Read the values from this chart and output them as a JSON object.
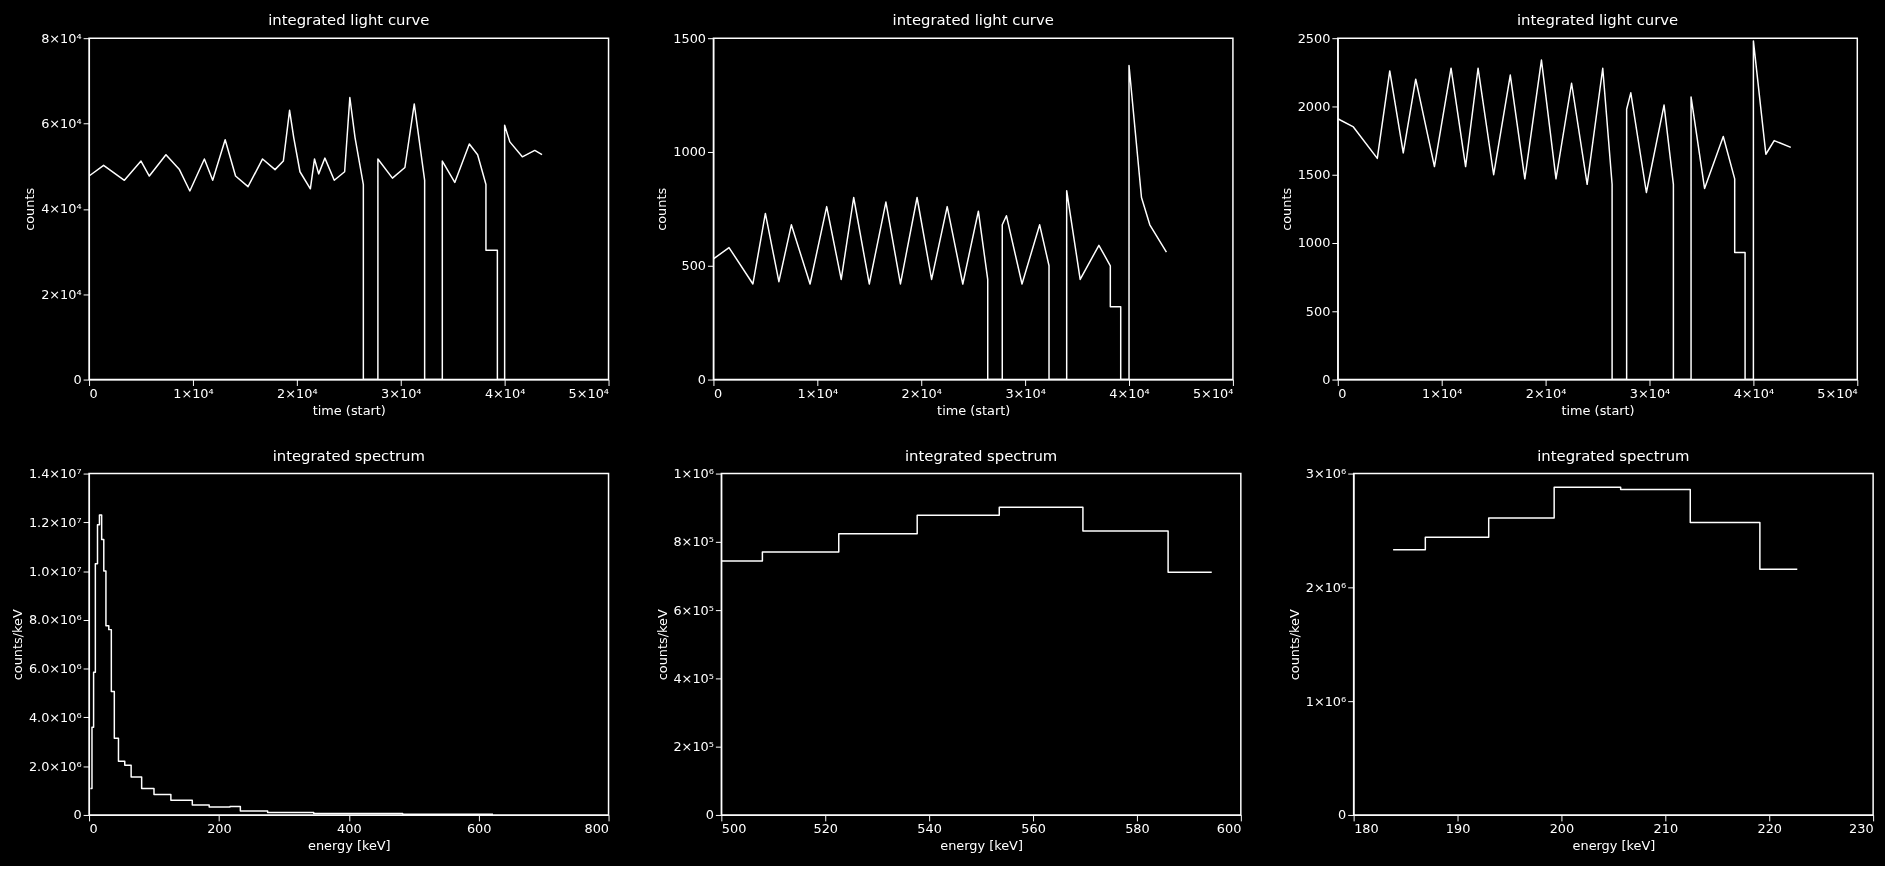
{
  "chart_data": [
    {
      "type": "line",
      "title": "integrated light curve",
      "xlabel": "time (start)",
      "ylabel": "counts",
      "x": [
        0,
        1400,
        3400,
        5000,
        5800,
        7400,
        8700,
        9700,
        11100,
        11900,
        13100,
        14100,
        15300,
        16700,
        17900,
        18700,
        19300,
        19700,
        20300,
        21300,
        21700,
        22100,
        22700,
        23600,
        24600,
        25100,
        25600,
        26400,
        26400,
        27800,
        27800,
        29200,
        30400,
        31300,
        32300,
        32300,
        34000,
        34000,
        35200,
        36600,
        37400,
        38200,
        38200,
        39300,
        39300,
        40000,
        40000,
        40500,
        41700,
        42900,
        43600
      ],
      "series": [
        {
          "color": "#ffffff",
          "values": [
            47700,
            50200,
            46700,
            51200,
            47700,
            52700,
            49200,
            44200,
            51700,
            46700,
            56200,
            47700,
            45200,
            51700,
            49200,
            51200,
            63100,
            56700,
            48700,
            44700,
            51700,
            48200,
            51900,
            46700,
            48700,
            66100,
            56700,
            45700,
            0,
            0,
            51700,
            47200,
            49700,
            64600,
            46700,
            0,
            0,
            51200,
            46200,
            55200,
            52700,
            45700,
            30300,
            30300,
            0,
            0,
            59600,
            55700,
            52200,
            53700,
            52700
          ]
        }
      ],
      "xlim": [
        0,
        50000
      ],
      "xticks": [
        0,
        {
          "value": 10000,
          "label": "1×10⁴"
        },
        {
          "value": 20000,
          "label": "2×10⁴"
        },
        {
          "value": 30000,
          "label": "3×10⁴"
        },
        {
          "value": 40000,
          "label": "4×10⁴"
        },
        {
          "value": 50000,
          "label": "5×10⁴"
        }
      ],
      "ylim": [
        0,
        80000
      ],
      "yticks": [
        0,
        {
          "value": 20000,
          "label": "2×10⁴"
        },
        {
          "value": 40000,
          "label": "4×10⁴"
        },
        {
          "value": 60000,
          "label": "6×10⁴"
        },
        {
          "value": 80000,
          "label": "8×10⁴"
        }
      ]
    },
    {
      "type": "line",
      "title": "integrated light curve",
      "xlabel": "time (start)",
      "ylabel": "counts",
      "x": [
        0,
        1500,
        3800,
        5000,
        6300,
        7500,
        9300,
        10900,
        12300,
        13500,
        15000,
        16600,
        18000,
        19600,
        21000,
        22500,
        24000,
        25500,
        26400,
        26400,
        27800,
        27800,
        28200,
        29700,
        31400,
        32300,
        32300,
        34000,
        34000,
        35300,
        37100,
        38200,
        38200,
        39200,
        39200,
        40000,
        40000,
        41200,
        42000,
        43600
      ],
      "series": [
        {
          "color": "#ffffff",
          "values": [
            530,
            580,
            420,
            730,
            430,
            680,
            420,
            760,
            440,
            800,
            420,
            780,
            420,
            800,
            440,
            760,
            420,
            740,
            440,
            0,
            0,
            680,
            720,
            420,
            680,
            500,
            0,
            0,
            830,
            440,
            590,
            500,
            320,
            320,
            0,
            0,
            1380,
            800,
            680,
            560
          ]
        }
      ],
      "xlim": [
        0,
        50000
      ],
      "xticks": [
        0,
        {
          "value": 10000,
          "label": "1×10⁴"
        },
        {
          "value": 20000,
          "label": "2×10⁴"
        },
        {
          "value": 30000,
          "label": "3×10⁴"
        },
        {
          "value": 40000,
          "label": "4×10⁴"
        },
        {
          "value": 50000,
          "label": "5×10⁴"
        }
      ],
      "ylim": [
        0,
        1500
      ],
      "yticks": [
        0,
        500,
        1000,
        1500
      ]
    },
    {
      "type": "line",
      "title": "integrated light curve",
      "xlabel": "time (start)",
      "ylabel": "counts",
      "x": [
        0,
        1500,
        3800,
        5000,
        6300,
        7500,
        9300,
        10900,
        12300,
        13500,
        15000,
        16600,
        18000,
        19600,
        21000,
        22500,
        24000,
        25500,
        26400,
        26400,
        27800,
        27800,
        28200,
        29700,
        31400,
        32300,
        32300,
        34000,
        34000,
        35300,
        37100,
        38200,
        38200,
        39200,
        39200,
        40000,
        40000,
        41200,
        42000,
        43600
      ],
      "series": [
        {
          "color": "#ffffff",
          "values": [
            1910,
            1850,
            1620,
            2260,
            1660,
            2200,
            1560,
            2280,
            1560,
            2280,
            1500,
            2230,
            1470,
            2340,
            1470,
            2170,
            1430,
            2280,
            1430,
            0,
            0,
            1980,
            2100,
            1370,
            2010,
            1430,
            0,
            0,
            2070,
            1400,
            1780,
            1470,
            930,
            930,
            0,
            0,
            2480,
            1650,
            1750,
            1700
          ]
        }
      ],
      "xlim": [
        0,
        50000
      ],
      "xticks": [
        0,
        {
          "value": 10000,
          "label": "1×10⁴"
        },
        {
          "value": 20000,
          "label": "2×10⁴"
        },
        {
          "value": 30000,
          "label": "3×10⁴"
        },
        {
          "value": 40000,
          "label": "4×10⁴"
        },
        {
          "value": 50000,
          "label": "5×10⁴"
        }
      ],
      "ylim": [
        0,
        2500
      ],
      "yticks": [
        0,
        500,
        1000,
        1500,
        2000,
        2500
      ]
    },
    {
      "type": "step",
      "title": "integrated spectrum",
      "xlabel": "energy [keV]",
      "ylabel": "counts/keV",
      "x": [
        2,
        4.5,
        7,
        9.7,
        13,
        16,
        19.4,
        22.7,
        26,
        30.4,
        34.3,
        38.9,
        45.3,
        55,
        64.8,
        81,
        100,
        126,
        159,
        185,
        217,
        233,
        275,
        346,
        483,
        622
      ],
      "series": [
        {
          "color": "#ffffff",
          "values": [
            1080000,
            3600000,
            5850000,
            10300000,
            11900000,
            12300000,
            11300000,
            10000000,
            7760000,
            7600000,
            5060000,
            3150000,
            2200000,
            2040000,
            1560000,
            1080000,
            840000,
            600000,
            410000,
            330000,
            350000,
            160000,
            100000,
            60000,
            30000,
            30000
          ]
        }
      ],
      "xlim": [
        0,
        800
      ],
      "xticks": [
        0,
        200,
        400,
        600,
        800
      ],
      "ylim": [
        0,
        14000000
      ],
      "yticks": [
        0,
        {
          "value": 2000000,
          "label": "2.0×10⁶"
        },
        {
          "value": 4000000,
          "label": "4.0×10⁶"
        },
        {
          "value": 6000000,
          "label": "6.0×10⁶"
        },
        {
          "value": 8000000,
          "label": "8.0×10⁶"
        },
        {
          "value": 10000000,
          "label": "1.0×10⁷"
        },
        {
          "value": 12000000,
          "label": "1.2×10⁷"
        },
        {
          "value": 14000000,
          "label": "1.4×10⁷"
        }
      ]
    },
    {
      "type": "step",
      "title": "integrated spectrum",
      "xlabel": "energy [keV]",
      "ylabel": "counts/keV",
      "x": [
        500,
        507.9,
        522.6,
        537.7,
        553.5,
        569.6,
        586,
        594.4
      ],
      "series": [
        {
          "color": "#ffffff",
          "values": [
            744000,
            770000,
            824000,
            878000,
            901000,
            832000,
            711000,
            711000
          ]
        }
      ],
      "xlim": [
        500,
        600
      ],
      "xticks": [
        500,
        520,
        540,
        560,
        580,
        600
      ],
      "ylim": [
        0,
        1000000
      ],
      "yticks": [
        0,
        {
          "value": 200000,
          "label": "2×10⁵"
        },
        {
          "value": 400000,
          "label": "4×10⁵"
        },
        {
          "value": 600000,
          "label": "6×10⁵"
        },
        {
          "value": 800000,
          "label": "8×10⁵"
        },
        {
          "value": 1000000,
          "label": "1×10⁶"
        }
      ]
    },
    {
      "type": "step",
      "title": "integrated spectrum",
      "xlabel": "energy [keV]",
      "ylabel": "counts/keV",
      "x": [
        183.8,
        186.9,
        193.0,
        199.3,
        205.7,
        212.4,
        219.1,
        222.7
      ],
      "series": [
        {
          "color": "#ffffff",
          "values": [
            2330000,
            2440000,
            2610000,
            2880000,
            2860000,
            2570000,
            2160000,
            2160000
          ]
        }
      ],
      "xlim": [
        180,
        230
      ],
      "xticks": [
        180,
        190,
        200,
        210,
        220,
        230
      ],
      "ylim": [
        0,
        3000000
      ],
      "yticks": [
        0,
        {
          "value": 1000000,
          "label": "1×10⁶"
        },
        {
          "value": 2000000,
          "label": "2×10⁶"
        },
        {
          "value": 3000000,
          "label": "3×10⁶"
        }
      ]
    }
  ]
}
